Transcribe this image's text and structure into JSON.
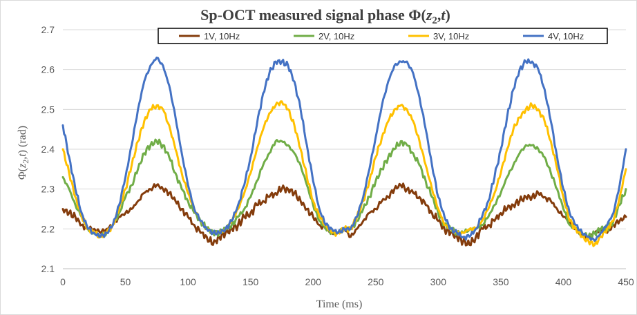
{
  "chart_data": {
    "type": "line",
    "title": "Sp-OCT measured signal phase Φ(z₂,t)",
    "title_parts": {
      "prefix": "Sp-OCT measured signal phase Φ(",
      "var1": "z",
      "sub": "2",
      "sep": ",",
      "var2": "t",
      "suffix": ")"
    },
    "xlabel": "Time (ms)",
    "ylabel": "Φ(z₂,t) (rad)",
    "ylabel_parts": {
      "prefix": "Φ(",
      "var1": "z",
      "sub": "2",
      "sep": ",",
      "var2": "t",
      "suffix": ") (rad)"
    },
    "xlim": [
      0,
      450
    ],
    "ylim": [
      2.1,
      2.7
    ],
    "xticks": [
      "0",
      "50",
      "100",
      "150",
      "200",
      "250",
      "300",
      "350",
      "400",
      "450"
    ],
    "yticks": [
      "2.1",
      "2.2",
      "2.3",
      "2.4",
      "2.5",
      "2.6",
      "2.7"
    ],
    "grid": "horizontal",
    "legend_position": "top",
    "period_ms": 100,
    "series": [
      {
        "name": "1V, 10Hz",
        "color": "#843c0c",
        "x": [
          0,
          5,
          10,
          15,
          20,
          25,
          30,
          35,
          40,
          45,
          50,
          55,
          60,
          65,
          70,
          75,
          80,
          85,
          90,
          95,
          100,
          105,
          110,
          115,
          120,
          125,
          130,
          135,
          140,
          145,
          150,
          155,
          160,
          165,
          170,
          175,
          180,
          185,
          190,
          195,
          200,
          205,
          210,
          215,
          220,
          225,
          230,
          235,
          240,
          245,
          250,
          255,
          260,
          265,
          270,
          275,
          280,
          285,
          290,
          295,
          300,
          305,
          310,
          315,
          320,
          325,
          330,
          335,
          340,
          345,
          350,
          355,
          360,
          365,
          370,
          375,
          380,
          385,
          390,
          395,
          400,
          405,
          410,
          415,
          420,
          425,
          430,
          435,
          440,
          445,
          450
        ],
        "y": [
          2.25,
          2.24,
          2.23,
          2.21,
          2.2,
          2.2,
          2.19,
          2.2,
          2.21,
          2.23,
          2.24,
          2.25,
          2.27,
          2.29,
          2.3,
          2.31,
          2.3,
          2.29,
          2.27,
          2.25,
          2.23,
          2.21,
          2.19,
          2.18,
          2.16,
          2.18,
          2.19,
          2.2,
          2.21,
          2.23,
          2.24,
          2.26,
          2.27,
          2.28,
          2.29,
          2.3,
          2.3,
          2.29,
          2.27,
          2.25,
          2.23,
          2.21,
          2.2,
          2.19,
          2.19,
          2.2,
          2.18,
          2.2,
          2.22,
          2.24,
          2.25,
          2.27,
          2.28,
          2.3,
          2.31,
          2.3,
          2.29,
          2.28,
          2.26,
          2.24,
          2.22,
          2.2,
          2.19,
          2.18,
          2.17,
          2.16,
          2.18,
          2.2,
          2.21,
          2.22,
          2.24,
          2.25,
          2.26,
          2.27,
          2.28,
          2.28,
          2.29,
          2.28,
          2.27,
          2.25,
          2.23,
          2.22,
          2.2,
          2.18,
          2.18,
          2.19,
          2.2,
          2.19,
          2.21,
          2.22,
          2.23
        ]
      },
      {
        "name": "2V, 10Hz",
        "color": "#70ad47",
        "x": [
          0,
          5,
          10,
          15,
          20,
          25,
          30,
          35,
          40,
          45,
          50,
          55,
          60,
          65,
          70,
          75,
          80,
          85,
          90,
          95,
          100,
          105,
          110,
          115,
          120,
          125,
          130,
          135,
          140,
          145,
          150,
          155,
          160,
          165,
          170,
          175,
          180,
          185,
          190,
          195,
          200,
          205,
          210,
          215,
          220,
          225,
          230,
          235,
          240,
          245,
          250,
          255,
          260,
          265,
          270,
          275,
          280,
          285,
          290,
          295,
          300,
          305,
          310,
          315,
          320,
          325,
          330,
          335,
          340,
          345,
          350,
          355,
          360,
          365,
          370,
          375,
          380,
          385,
          390,
          395,
          400,
          405,
          410,
          415,
          420,
          425,
          430,
          435,
          440,
          445,
          450
        ],
        "y": [
          2.33,
          2.3,
          2.26,
          2.23,
          2.2,
          2.19,
          2.18,
          2.19,
          2.21,
          2.24,
          2.28,
          2.31,
          2.35,
          2.39,
          2.41,
          2.42,
          2.41,
          2.38,
          2.34,
          2.3,
          2.27,
          2.24,
          2.22,
          2.2,
          2.19,
          2.19,
          2.2,
          2.21,
          2.23,
          2.25,
          2.28,
          2.32,
          2.36,
          2.39,
          2.42,
          2.42,
          2.41,
          2.39,
          2.36,
          2.31,
          2.26,
          2.22,
          2.2,
          2.19,
          2.19,
          2.2,
          2.2,
          2.22,
          2.25,
          2.28,
          2.32,
          2.35,
          2.38,
          2.4,
          2.42,
          2.41,
          2.39,
          2.36,
          2.32,
          2.28,
          2.24,
          2.21,
          2.2,
          2.19,
          2.19,
          2.2,
          2.2,
          2.21,
          2.23,
          2.26,
          2.29,
          2.33,
          2.36,
          2.39,
          2.41,
          2.41,
          2.4,
          2.38,
          2.34,
          2.3,
          2.25,
          2.21,
          2.2,
          2.19,
          2.18,
          2.19,
          2.2,
          2.2,
          2.22,
          2.26,
          2.3
        ]
      },
      {
        "name": "3V, 10Hz",
        "color": "#ffc000",
        "x": [
          0,
          5,
          10,
          15,
          20,
          25,
          30,
          35,
          40,
          45,
          50,
          55,
          60,
          65,
          70,
          75,
          80,
          85,
          90,
          95,
          100,
          105,
          110,
          115,
          120,
          125,
          130,
          135,
          140,
          145,
          150,
          155,
          160,
          165,
          170,
          175,
          180,
          185,
          190,
          195,
          200,
          205,
          210,
          215,
          220,
          225,
          230,
          235,
          240,
          245,
          250,
          255,
          260,
          265,
          270,
          275,
          280,
          285,
          290,
          295,
          300,
          305,
          310,
          315,
          320,
          325,
          330,
          335,
          340,
          345,
          350,
          355,
          360,
          365,
          370,
          375,
          380,
          385,
          390,
          395,
          400,
          405,
          410,
          415,
          420,
          425,
          430,
          435,
          440,
          445,
          450
        ],
        "y": [
          2.4,
          2.34,
          2.28,
          2.23,
          2.2,
          2.19,
          2.18,
          2.19,
          2.21,
          2.25,
          2.3,
          2.36,
          2.42,
          2.47,
          2.5,
          2.51,
          2.5,
          2.46,
          2.4,
          2.34,
          2.29,
          2.25,
          2.22,
          2.2,
          2.19,
          2.19,
          2.2,
          2.22,
          2.25,
          2.29,
          2.34,
          2.4,
          2.45,
          2.49,
          2.51,
          2.52,
          2.5,
          2.46,
          2.4,
          2.33,
          2.27,
          2.23,
          2.21,
          2.19,
          2.19,
          2.2,
          2.2,
          2.23,
          2.27,
          2.32,
          2.38,
          2.43,
          2.47,
          2.5,
          2.51,
          2.5,
          2.47,
          2.42,
          2.36,
          2.3,
          2.25,
          2.21,
          2.2,
          2.19,
          2.19,
          2.2,
          2.2,
          2.22,
          2.25,
          2.29,
          2.34,
          2.4,
          2.45,
          2.48,
          2.5,
          2.51,
          2.5,
          2.47,
          2.42,
          2.35,
          2.28,
          2.22,
          2.2,
          2.18,
          2.17,
          2.16,
          2.18,
          2.2,
          2.22,
          2.28,
          2.35
        ]
      },
      {
        "name": "4V, 10Hz",
        "color": "#4472c4",
        "x": [
          0,
          5,
          10,
          15,
          20,
          25,
          30,
          35,
          40,
          45,
          50,
          55,
          60,
          65,
          70,
          75,
          80,
          85,
          90,
          95,
          100,
          105,
          110,
          115,
          120,
          125,
          130,
          135,
          140,
          145,
          150,
          155,
          160,
          165,
          170,
          175,
          180,
          185,
          190,
          195,
          200,
          205,
          210,
          215,
          220,
          225,
          230,
          235,
          240,
          245,
          250,
          255,
          260,
          265,
          270,
          275,
          280,
          285,
          290,
          295,
          300,
          305,
          310,
          315,
          320,
          325,
          330,
          335,
          340,
          345,
          350,
          355,
          360,
          365,
          370,
          375,
          380,
          385,
          390,
          395,
          400,
          405,
          410,
          415,
          420,
          425,
          430,
          435,
          440,
          445,
          450
        ],
        "y": [
          2.46,
          2.38,
          2.3,
          2.24,
          2.2,
          2.19,
          2.18,
          2.19,
          2.21,
          2.26,
          2.33,
          2.41,
          2.5,
          2.57,
          2.61,
          2.63,
          2.61,
          2.56,
          2.48,
          2.39,
          2.31,
          2.25,
          2.22,
          2.2,
          2.19,
          2.19,
          2.2,
          2.22,
          2.26,
          2.31,
          2.38,
          2.46,
          2.54,
          2.59,
          2.62,
          2.62,
          2.61,
          2.57,
          2.5,
          2.41,
          2.32,
          2.25,
          2.21,
          2.2,
          2.19,
          2.2,
          2.2,
          2.23,
          2.28,
          2.35,
          2.43,
          2.51,
          2.57,
          2.61,
          2.62,
          2.62,
          2.59,
          2.53,
          2.45,
          2.36,
          2.28,
          2.23,
          2.2,
          2.19,
          2.18,
          2.18,
          2.2,
          2.23,
          2.27,
          2.33,
          2.4,
          2.48,
          2.55,
          2.6,
          2.62,
          2.62,
          2.6,
          2.55,
          2.47,
          2.38,
          2.3,
          2.24,
          2.21,
          2.19,
          2.18,
          2.17,
          2.19,
          2.21,
          2.24,
          2.31,
          2.4
        ]
      }
    ]
  }
}
